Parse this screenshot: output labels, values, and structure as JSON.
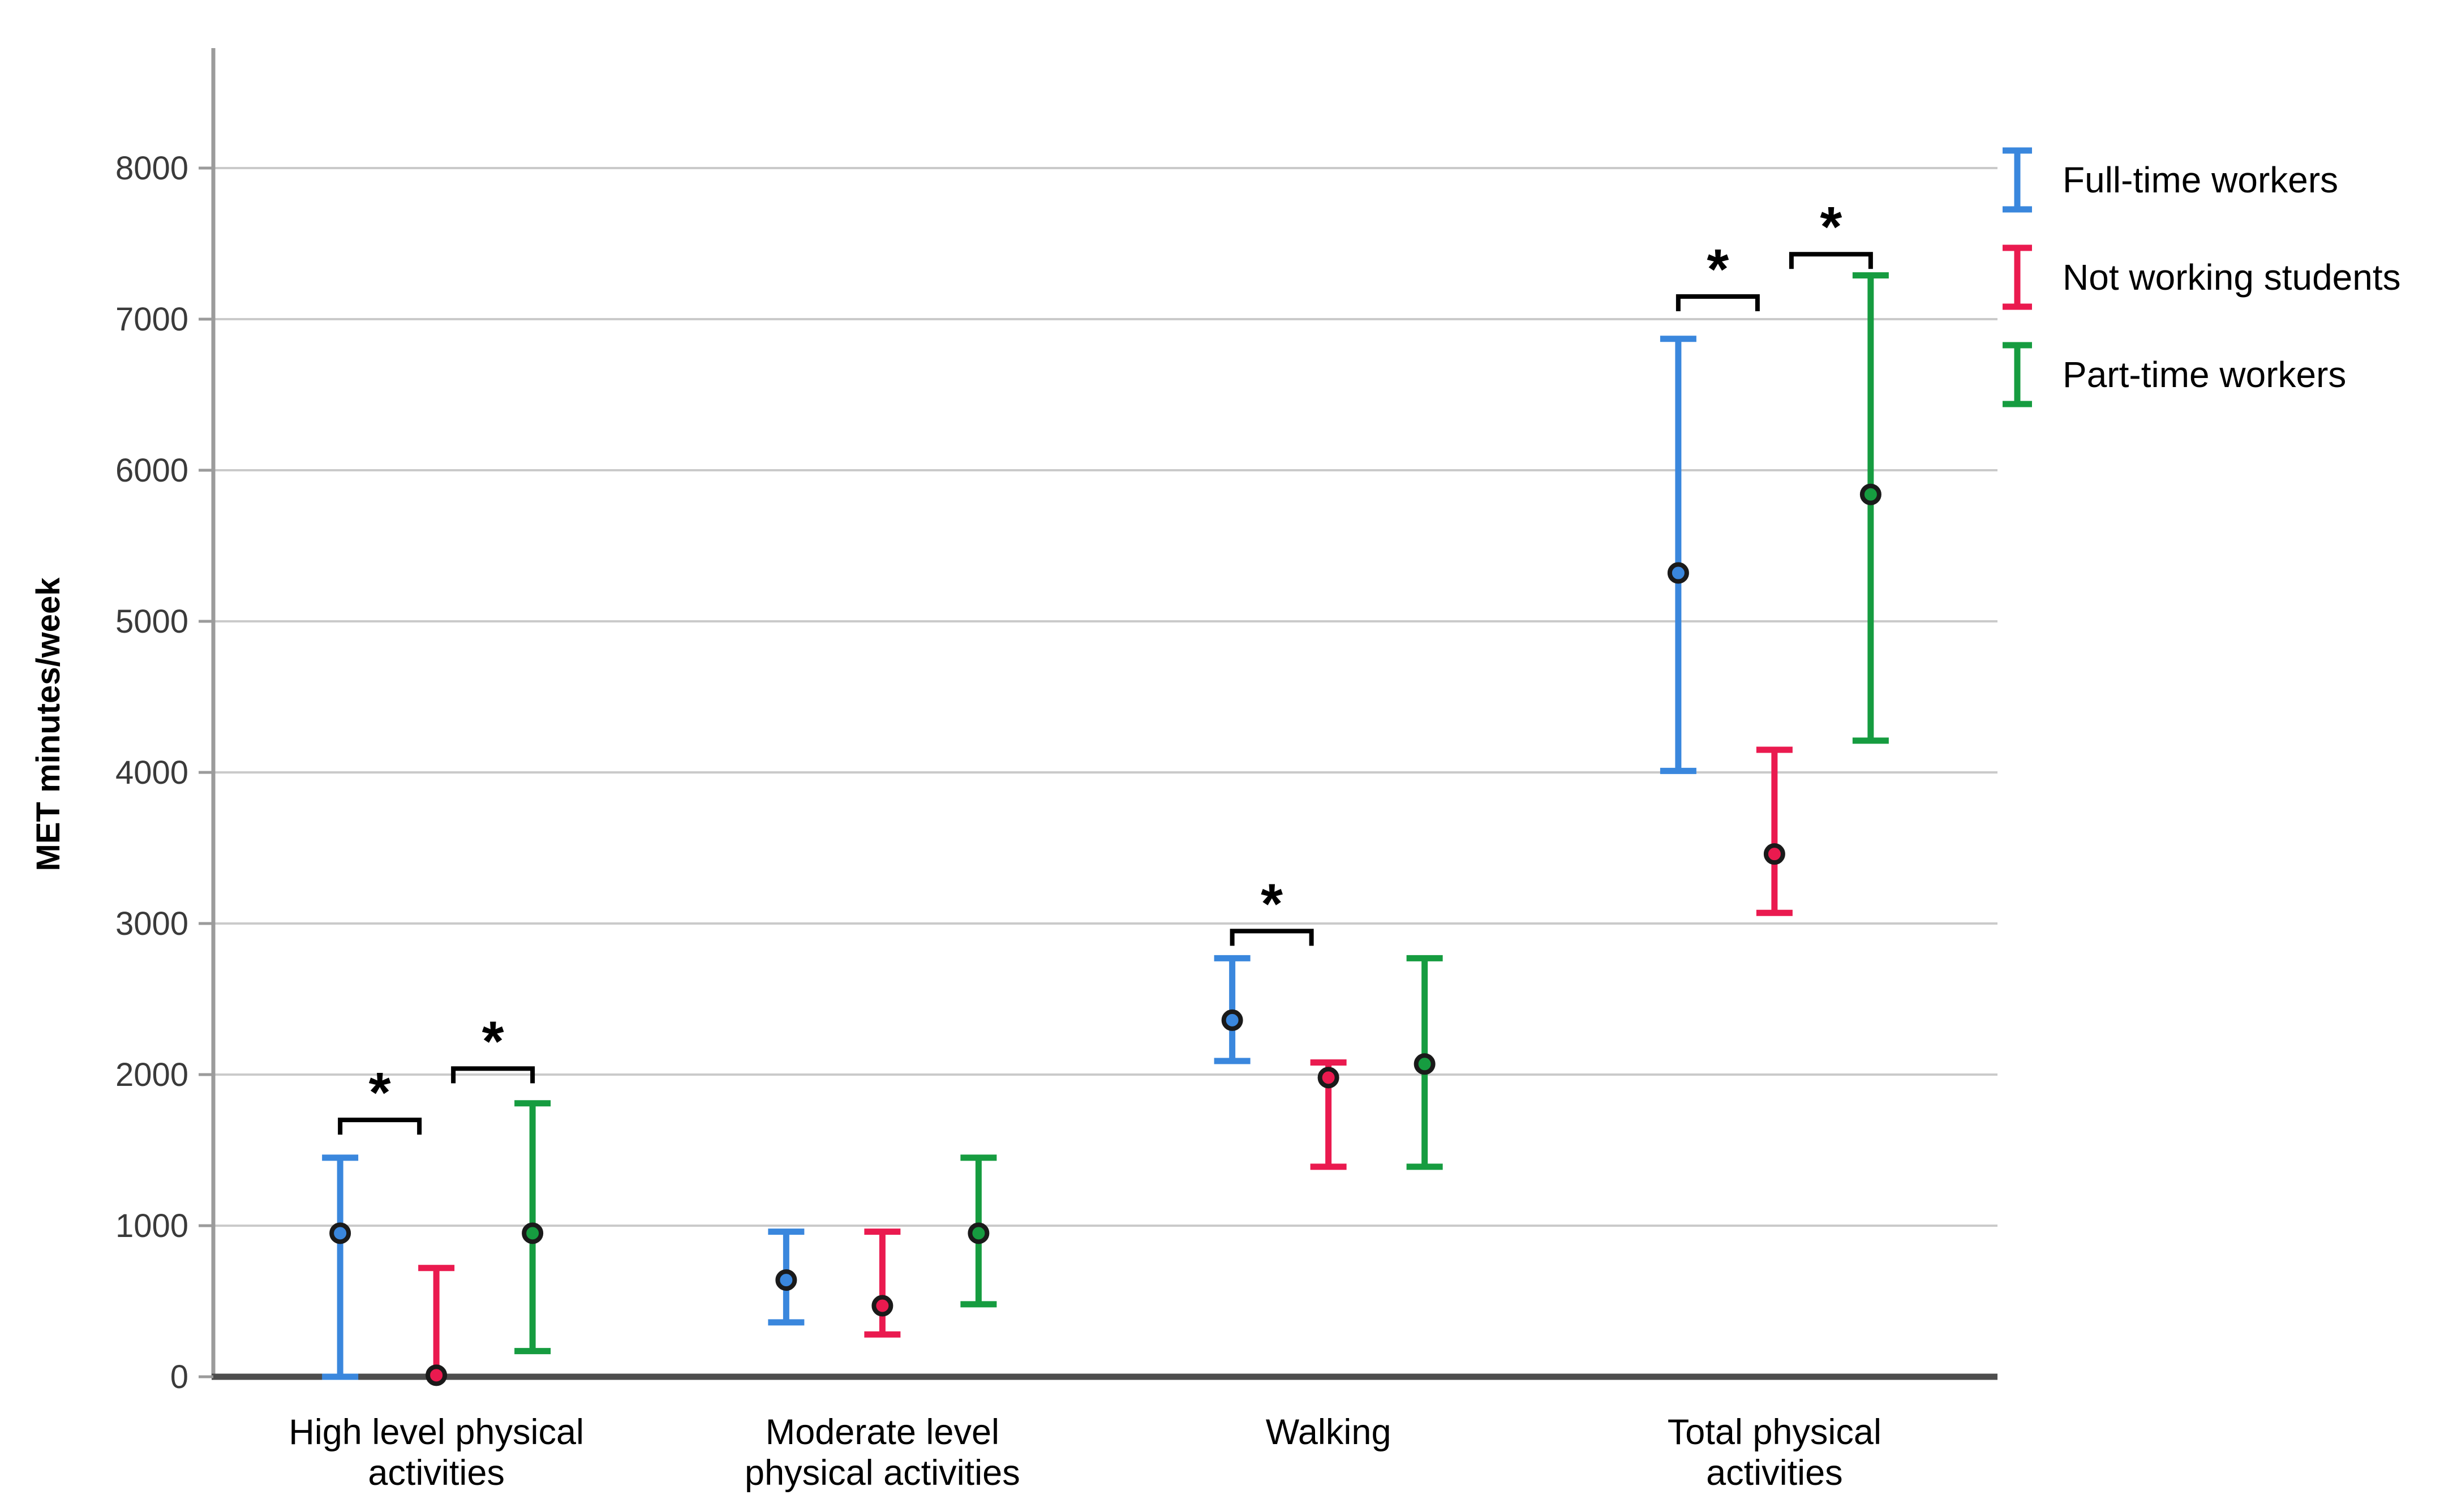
{
  "chart_data": {
    "type": "errorbar",
    "title": "",
    "ylabel": "MET minutes/week",
    "xlabel": "",
    "ylim": [
      0,
      8600
    ],
    "grid": true,
    "legend_position": "top-right",
    "y_ticks": [
      0,
      1000,
      2000,
      3000,
      4000,
      5000,
      6000,
      7000,
      8000
    ],
    "categories": [
      {
        "label": "High level physical activities",
        "lines": [
          "High level physical",
          "activities"
        ]
      },
      {
        "label": "Moderate level physical activities",
        "lines": [
          "Moderate level",
          "physical activities"
        ]
      },
      {
        "label": "Walking",
        "lines": [
          "Walking"
        ]
      },
      {
        "label": "Total physical activities",
        "lines": [
          "Total physical",
          "activities"
        ]
      }
    ],
    "series": [
      {
        "name": "Full-time workers",
        "color": "#3a87dd",
        "points": [
          {
            "mean": 950,
            "lo": 0,
            "hi": 1450
          },
          {
            "mean": 640,
            "lo": 360,
            "hi": 960
          },
          {
            "mean": 2360,
            "lo": 2090,
            "hi": 2770
          },
          {
            "mean": 5320,
            "lo": 4010,
            "hi": 6870
          }
        ]
      },
      {
        "name": "Not working students",
        "color": "#ea1a4f",
        "points": [
          {
            "mean": 10,
            "lo": null,
            "hi": 720
          },
          {
            "mean": 470,
            "lo": 280,
            "hi": 960
          },
          {
            "mean": 1980,
            "lo": 1390,
            "hi": 2080
          },
          {
            "mean": 3460,
            "lo": 3070,
            "hi": 4150
          }
        ]
      },
      {
        "name": "Part-time workers",
        "color": "#169c40",
        "points": [
          {
            "mean": 950,
            "lo": 170,
            "hi": 1810
          },
          {
            "mean": 950,
            "lo": 480,
            "hi": 1450
          },
          {
            "mean": 2070,
            "lo": 1390,
            "hi": 2770
          },
          {
            "mean": 5840,
            "lo": 4210,
            "hi": 7290
          }
        ]
      }
    ],
    "significance_markers": [
      {
        "category": 0,
        "between": [
          0,
          1
        ],
        "y": 1700,
        "label": "*"
      },
      {
        "category": 0,
        "between": [
          1,
          2
        ],
        "y": 2040,
        "label": "*"
      },
      {
        "category": 2,
        "between": [
          0,
          1
        ],
        "y": 2950,
        "label": "*"
      },
      {
        "category": 3,
        "between": [
          0,
          1
        ],
        "y": 7150,
        "label": "*"
      },
      {
        "category": 3,
        "between": [
          1,
          2
        ],
        "y": 7430,
        "label": "*"
      }
    ],
    "legend": [
      {
        "label": "Full-time workers",
        "color": "#3a87dd"
      },
      {
        "label": "Not working students",
        "color": "#ea1a4f"
      },
      {
        "label": "Part-time workers",
        "color": "#169c40"
      }
    ],
    "colors": {
      "gridline": "#cacaca",
      "y_axis_line": "#9b9b9b",
      "x_axis_line": "#4d4d4d",
      "tick_label": "#3a3a3a",
      "category_label": "#000000",
      "marker_outline": "#1a1a1a",
      "bracket": "#000000"
    }
  }
}
